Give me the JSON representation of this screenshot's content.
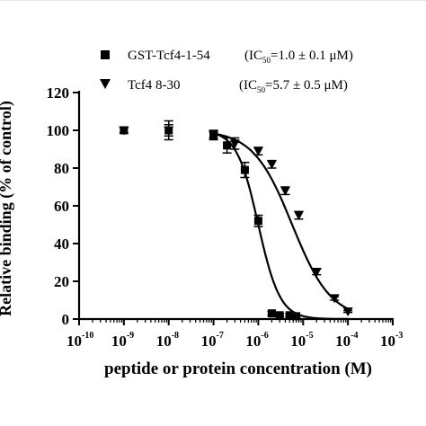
{
  "chart_data": {
    "type": "scatter",
    "xscale": "log",
    "xlabel": "peptide or protein concentration (M)",
    "ylabel": "Relative binding (% of control)",
    "xlim": [
      1e-10,
      0.001
    ],
    "ylim": [
      0,
      120
    ],
    "x_ticks": [
      {
        "base": "10",
        "exp": "-10",
        "value": 1e-10
      },
      {
        "base": "10",
        "exp": "-9",
        "value": 1e-09
      },
      {
        "base": "10",
        "exp": "-8",
        "value": 1e-08
      },
      {
        "base": "10",
        "exp": "-7",
        "value": 1e-07
      },
      {
        "base": "10",
        "exp": "-6",
        "value": 1e-06
      },
      {
        "base": "10",
        "exp": "-5",
        "value": 1e-05
      },
      {
        "base": "10",
        "exp": "-4",
        "value": 0.0001
      },
      {
        "base": "10",
        "exp": "-3",
        "value": 0.001
      }
    ],
    "y_ticks": [
      0,
      20,
      40,
      60,
      80,
      100,
      120
    ],
    "grid": false,
    "legend_position": "top",
    "series": [
      {
        "name": "GST-Tcf4-1-54",
        "ic50_label": {
          "pre": "(IC",
          "sub": "50",
          "post": "=1.0 ± 0.1 μM)"
        },
        "marker": "square",
        "ic50": 1e-06,
        "hill": 1.8,
        "x": [
          1e-09,
          1e-08,
          1e-07,
          2e-07,
          5e-07,
          1e-06,
          2e-06,
          3e-06,
          5e-06,
          7e-06
        ],
        "y": [
          100,
          100,
          97,
          92,
          79,
          52,
          3,
          2,
          2,
          1.5
        ],
        "err": [
          1.5,
          5,
          2,
          4,
          4,
          3,
          1,
          0.8,
          0.8,
          0.5
        ]
      },
      {
        "name": "Tcf4 8-30",
        "ic50_label": {
          "pre": "(IC",
          "sub": "50",
          "post": "=5.7 ± 0.5 μM)"
        },
        "marker": "triangle-down",
        "ic50": 5.7e-06,
        "hill": 1.0,
        "x": [
          1e-09,
          1e-08,
          1e-07,
          3e-07,
          1e-06,
          2e-06,
          4e-06,
          8e-06,
          2e-05,
          5e-05,
          0.0001
        ],
        "y": [
          100,
          100,
          98,
          93,
          89,
          82,
          68,
          55,
          25,
          11,
          4
        ],
        "err": [
          0,
          3,
          2,
          3,
          2,
          2,
          2,
          2,
          1.5,
          1,
          0.5
        ]
      }
    ]
  }
}
